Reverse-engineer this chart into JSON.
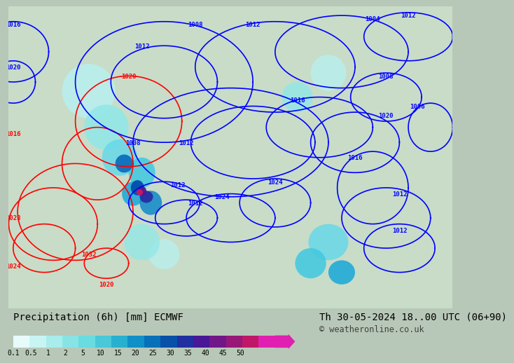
{
  "title_left": "Precipitation (6h) [mm] ECMWF",
  "title_right": "Th 30-05-2024 18..00 UTC (06+90)",
  "copyright": "© weatheronline.co.uk",
  "colorbar_values": [
    0.1,
    0.5,
    1,
    2,
    5,
    10,
    15,
    20,
    25,
    30,
    35,
    40,
    45,
    50
  ],
  "colorbar_colors": [
    "#e0f8f8",
    "#b8f0f0",
    "#90e8e8",
    "#68d8e8",
    "#40c8e0",
    "#18a8d8",
    "#1088c8",
    "#0868b8",
    "#0048a8",
    "#2828a0",
    "#501890",
    "#781880",
    "#a01870",
    "#c81860",
    "#e020a0",
    "#f040c0"
  ],
  "bg_color": "#d4e8d4",
  "map_bg": "#c8dcc8",
  "bottom_bar_color": "#d0d0d0",
  "text_color": "#000000",
  "label_fontsize": 9,
  "title_fontsize": 10,
  "copyright_fontsize": 8.5
}
